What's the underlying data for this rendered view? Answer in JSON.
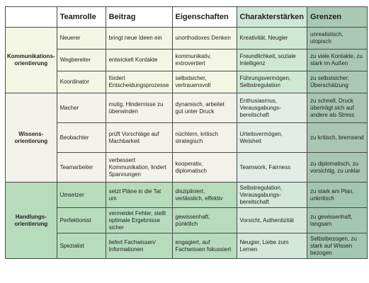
{
  "headers": {
    "group": "",
    "teamrolle": "Teamrolle",
    "beitrag": "Beitrag",
    "eigenschaften": "Eigenschaften",
    "charakterstaerken": "Charakterstärken",
    "grenzen": "Grenzen"
  },
  "groups": [
    {
      "label": "Kommunikations-orientierung",
      "rows": [
        {
          "teamrolle": "Neuerer",
          "beitrag": "bringt neue Ideen ein",
          "eigenschaften": "unorthodoxes Denken",
          "charakterstaerken": "Kreativität, Neugier",
          "grenzen": "unrealistisch, utopisch"
        },
        {
          "teamrolle": "Wegbereiter",
          "beitrag": "entwickelt Kontakte",
          "eigenschaften": "kommunikativ, extrovertiert",
          "charakterstaerken": "Freundlichkeit, soziale Intelligenz",
          "grenzen": "zu viele Kontakte, zu stark im Außen"
        },
        {
          "teamrolle": "Koordinator",
          "beitrag": "fördert Entscheidungsprozesse",
          "eigenschaften": "selbstsicher, vertrauensvoll",
          "charakterstaerken": "Führungsvermögen, Selbstregulation",
          "grenzen": "zu selbstsicher; Überschätzung"
        }
      ]
    },
    {
      "label": "Wissens-orientierung",
      "rows": [
        {
          "teamrolle": "Macher",
          "beitrag": "mutig, Hindernisse zu überwinden",
          "eigenschaften": "dynamisch, arbeitet gut unter Druck",
          "charakterstaerken": "Enthusiasmus, Verausgabungs-bereitschaft",
          "grenzen": "zu schnell, Druck überträgt sich auf andere als Stress"
        },
        {
          "teamrolle": "Beobachter",
          "beitrag": "prüft Vorschläge auf Machbarkeit",
          "eigenschaften": "nüchtern, kritisch strategisch",
          "charakterstaerken": "Urteilsvermögen, Weisheit",
          "grenzen": "zu kritisch, bremsend"
        },
        {
          "teamrolle": "Teamarbeiter",
          "beitrag": "verbessert Kommunikation, lindert Spannungen",
          "eigenschaften": "kooperativ, diplomatisch",
          "charakterstaerken": "Teamwork, Fairness",
          "grenzen": "zu diplomatisch, zu vorsichtig, zu unklar"
        }
      ]
    },
    {
      "label": "Handlungs-orientierung",
      "rows": [
        {
          "teamrolle": "Umsetzer",
          "beitrag": "setzt Pläne in die Tat um",
          "eigenschaften": "diszipliniert, verlässlich, effektiv",
          "charakterstaerken": "Selbstregulation, Verausgabungs-bereitschaft",
          "grenzen": "zu stark am Plan, unkritisch"
        },
        {
          "teamrolle": "Perfektionist",
          "beitrag": "vermeidet Fehler, stellt optimale Ergebnisse sicher",
          "eigenschaften": "gewissenhaft, pünktlich",
          "charakterstaerken": "Vorsicht, Authentizität",
          "grenzen": "zu gewissenhaft, langsam"
        },
        {
          "teamrolle": "Spezialist",
          "beitrag": "liefert Fachwissen/ Informationen",
          "eigenschaften": "engagiert, auf Fachwissen fokussiert",
          "charakterstaerken": "Neugier, Liebe zum Lernen",
          "grenzen": "Selbstbezogen, zu stark auf Wissen bezogen"
        }
      ]
    }
  ]
}
